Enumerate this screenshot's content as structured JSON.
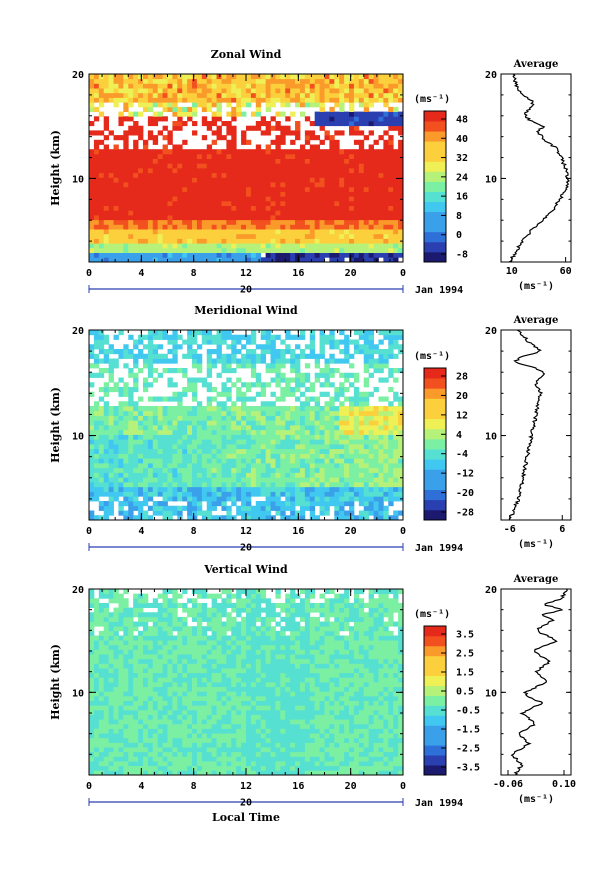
{
  "chart_data": [
    {
      "type": "heatmap",
      "title": "Zonal Wind",
      "ylabel": "Height (km)",
      "ylim": [
        2,
        20
      ],
      "y_ticks": [
        "10",
        "20"
      ],
      "x_ticks": [
        "0",
        "4",
        "8",
        "12",
        "16",
        "20",
        "0"
      ],
      "date_label": "20",
      "date_right": "Jan 1994",
      "colorbar": {
        "unit": "(ms⁻¹)",
        "ticks": [
          "48",
          "40",
          "32",
          "24",
          "16",
          "8",
          "0",
          "-8"
        ],
        "range": [
          -10,
          50
        ]
      },
      "profile": {
        "title": "Average",
        "xlabel": "(ms⁻¹)",
        "x_ticks": [
          "10",
          "60"
        ],
        "xlim": [
          0,
          65
        ],
        "y_ticks": [
          "10",
          "20"
        ],
        "ylim": [
          2,
          20
        ],
        "x": [
          8,
          14,
          20,
          28,
          38,
          48,
          55,
          60,
          62,
          60,
          56,
          50,
          42,
          38,
          34,
          40,
          28,
          22,
          25,
          30,
          28,
          20,
          14,
          12
        ],
        "y": [
          2,
          3,
          4,
          5,
          6,
          7,
          8,
          9,
          10,
          11,
          12,
          13,
          13.5,
          14,
          14.5,
          15,
          15.5,
          16,
          16.5,
          17,
          17.5,
          18,
          19,
          20
        ]
      }
    },
    {
      "type": "heatmap",
      "title": "Meridional Wind",
      "ylabel": "Height (km)",
      "ylim": [
        2,
        20
      ],
      "y_ticks": [
        "10",
        "20"
      ],
      "x_ticks": [
        "0",
        "4",
        "8",
        "12",
        "16",
        "20",
        "0"
      ],
      "date_label": "20",
      "date_right": "Jan 1994",
      "colorbar": {
        "unit": "(ms⁻¹)",
        "ticks": [
          "28",
          "20",
          "12",
          "4",
          "-4",
          "-12",
          "-20",
          "-28"
        ],
        "range": [
          -30,
          30
        ]
      },
      "profile": {
        "title": "Average",
        "xlabel": "(ms⁻¹)",
        "x_ticks": [
          "-6",
          "6"
        ],
        "xlim": [
          -8,
          8
        ],
        "y_ticks": [
          "10",
          "20"
        ],
        "ylim": [
          2,
          20
        ],
        "x": [
          -6,
          -5,
          -4,
          -3.5,
          -3,
          -2.5,
          -2,
          -1.5,
          -1,
          -0.5,
          0,
          0.5,
          1,
          0,
          2,
          -1,
          -5,
          -3,
          1,
          -2,
          -4
        ],
        "y": [
          2,
          3,
          4,
          5,
          6,
          7,
          8,
          9,
          10,
          11,
          12,
          13,
          14,
          15,
          16,
          16.5,
          17,
          17.5,
          18,
          19,
          20
        ]
      }
    },
    {
      "type": "heatmap",
      "title": "Vertical Wind",
      "ylabel": "Height (km)",
      "xlabel": "Local Time",
      "ylim": [
        2,
        20
      ],
      "y_ticks": [
        "10",
        "20"
      ],
      "x_ticks": [
        "0",
        "4",
        "8",
        "12",
        "16",
        "20",
        "0"
      ],
      "date_label": "20",
      "date_right": "Jan 1994",
      "colorbar": {
        "unit": "(ms⁻¹)",
        "ticks": [
          "3.5",
          "2.5",
          "1.5",
          "0.5",
          "-0.5",
          "-1.5",
          "-2.5",
          "-3.5"
        ],
        "range": [
          -4,
          4
        ]
      },
      "profile": {
        "title": "Average",
        "xlabel": "(ms⁻¹)",
        "x_ticks": [
          "-0.06",
          "0.10"
        ],
        "xlim": [
          -0.08,
          0.12
        ],
        "y_ticks": [
          "10",
          "20"
        ],
        "ylim": [
          2,
          20
        ],
        "x": [
          -0.04,
          -0.02,
          -0.05,
          0.0,
          -0.03,
          0.02,
          -0.02,
          0.04,
          0.0,
          -0.01,
          0.05,
          0.02,
          0.06,
          0.01,
          0.08,
          0.02,
          0.07,
          0.03,
          0.1,
          0.04,
          0.09,
          0.11
        ],
        "y": [
          2,
          3,
          4,
          5,
          6,
          7,
          8,
          9,
          9.5,
          10,
          11,
          12,
          13,
          14,
          15,
          16,
          17,
          17.5,
          18,
          18.5,
          19,
          20
        ]
      }
    }
  ]
}
